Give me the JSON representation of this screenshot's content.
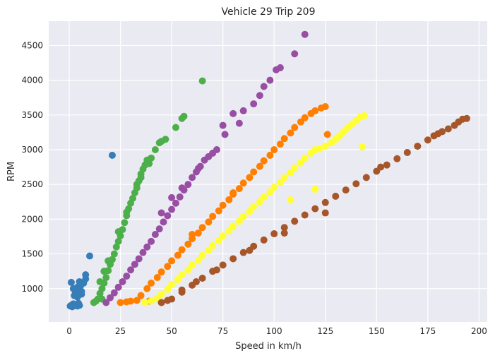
{
  "chart_data": {
    "type": "scatter",
    "title": "Vehicle 29 Trip 209",
    "xlabel": "Speed in km/h",
    "ylabel": "RPM",
    "xlim": [
      -10,
      204
    ],
    "ylim": [
      520,
      4850
    ],
    "xticks": [
      0,
      25,
      50,
      75,
      100,
      125,
      150,
      175,
      200
    ],
    "yticks": [
      1000,
      1500,
      2000,
      2500,
      3000,
      3500,
      4000,
      4500
    ],
    "grid": true,
    "legend": "none",
    "series": [
      {
        "color": "#377eb8",
        "points": [
          [
            0.5,
            750
          ],
          [
            1,
            760
          ],
          [
            1.5,
            740
          ],
          [
            2,
            780
          ],
          [
            2.5,
            770
          ],
          [
            3,
            760
          ],
          [
            4,
            750
          ],
          [
            4.5,
            790
          ],
          [
            5,
            760
          ],
          [
            1,
            1090
          ],
          [
            2,
            1000
          ],
          [
            3,
            960
          ],
          [
            4,
            1020
          ],
          [
            5,
            1100
          ],
          [
            5.5,
            1040
          ],
          [
            6,
            960
          ],
          [
            7,
            1080
          ],
          [
            8,
            1200
          ],
          [
            8,
            1140
          ],
          [
            2.5,
            900
          ],
          [
            4,
            880
          ],
          [
            6,
            920
          ],
          [
            10,
            1470
          ],
          [
            21,
            2920
          ]
        ]
      },
      {
        "color": "#4daf4a",
        "points": [
          [
            12,
            800
          ],
          [
            13,
            820
          ],
          [
            14,
            850
          ],
          [
            15,
            930
          ],
          [
            16,
            1000
          ],
          [
            17,
            1080
          ],
          [
            18,
            1160
          ],
          [
            19,
            1260
          ],
          [
            20,
            1350
          ],
          [
            21,
            1420
          ],
          [
            22,
            1500
          ],
          [
            23,
            1600
          ],
          [
            24,
            1680
          ],
          [
            25,
            1760
          ],
          [
            26,
            1850
          ],
          [
            27,
            1950
          ],
          [
            28,
            2050
          ],
          [
            29,
            2150
          ],
          [
            30,
            2230
          ],
          [
            31,
            2300
          ],
          [
            32,
            2380
          ],
          [
            33,
            2450
          ],
          [
            34,
            2550
          ],
          [
            35,
            2650
          ],
          [
            36,
            2720
          ],
          [
            37,
            2780
          ],
          [
            38,
            2850
          ],
          [
            39,
            2800
          ],
          [
            40,
            2880
          ],
          [
            42,
            3000
          ],
          [
            44,
            3100
          ],
          [
            45,
            3120
          ],
          [
            47,
            3150
          ],
          [
            52,
            3320
          ],
          [
            55,
            3450
          ],
          [
            56,
            3480
          ],
          [
            65,
            3990
          ],
          [
            15,
            1100
          ],
          [
            17,
            1250
          ],
          [
            19,
            1400
          ],
          [
            24,
            1820
          ],
          [
            28,
            2100
          ],
          [
            33,
            2500
          ],
          [
            35,
            2600
          ],
          [
            16,
            850
          ]
        ]
      },
      {
        "color": "#984ea3",
        "points": [
          [
            18,
            800
          ],
          [
            20,
            870
          ],
          [
            22,
            940
          ],
          [
            24,
            1020
          ],
          [
            26,
            1100
          ],
          [
            28,
            1180
          ],
          [
            30,
            1270
          ],
          [
            32,
            1350
          ],
          [
            34,
            1430
          ],
          [
            36,
            1520
          ],
          [
            38,
            1600
          ],
          [
            40,
            1680
          ],
          [
            42,
            1780
          ],
          [
            44,
            1860
          ],
          [
            46,
            1960
          ],
          [
            48,
            2050
          ],
          [
            50,
            2140
          ],
          [
            52,
            2230
          ],
          [
            54,
            2320
          ],
          [
            56,
            2420
          ],
          [
            58,
            2500
          ],
          [
            60,
            2600
          ],
          [
            62,
            2680
          ],
          [
            64,
            2760
          ],
          [
            66,
            2850
          ],
          [
            68,
            2900
          ],
          [
            70,
            2950
          ],
          [
            72,
            3000
          ],
          [
            75,
            3350
          ],
          [
            76,
            3220
          ],
          [
            80,
            3520
          ],
          [
            83,
            3380
          ],
          [
            85,
            3560
          ],
          [
            90,
            3660
          ],
          [
            93,
            3780
          ],
          [
            95,
            3910
          ],
          [
            98,
            4000
          ],
          [
            101,
            4150
          ],
          [
            103,
            4180
          ],
          [
            110,
            4380
          ],
          [
            115,
            4660
          ],
          [
            45,
            2090
          ],
          [
            50,
            2310
          ],
          [
            55,
            2450
          ],
          [
            63,
            2730
          ]
        ]
      },
      {
        "color": "#ff7f00",
        "points": [
          [
            25,
            800
          ],
          [
            28,
            810
          ],
          [
            30,
            820
          ],
          [
            33,
            830
          ],
          [
            35,
            900
          ],
          [
            38,
            1000
          ],
          [
            40,
            1080
          ],
          [
            43,
            1160
          ],
          [
            45,
            1240
          ],
          [
            48,
            1320
          ],
          [
            50,
            1400
          ],
          [
            53,
            1480
          ],
          [
            55,
            1560
          ],
          [
            58,
            1640
          ],
          [
            60,
            1720
          ],
          [
            63,
            1800
          ],
          [
            65,
            1880
          ],
          [
            68,
            1960
          ],
          [
            70,
            2040
          ],
          [
            73,
            2120
          ],
          [
            75,
            2200
          ],
          [
            78,
            2280
          ],
          [
            80,
            2360
          ],
          [
            83,
            2440
          ],
          [
            85,
            2520
          ],
          [
            88,
            2600
          ],
          [
            90,
            2680
          ],
          [
            93,
            2760
          ],
          [
            95,
            2840
          ],
          [
            98,
            2920
          ],
          [
            100,
            3000
          ],
          [
            103,
            3080
          ],
          [
            105,
            3160
          ],
          [
            108,
            3240
          ],
          [
            110,
            3320
          ],
          [
            113,
            3400
          ],
          [
            115,
            3460
          ],
          [
            118,
            3520
          ],
          [
            120,
            3560
          ],
          [
            123,
            3600
          ],
          [
            125,
            3620
          ],
          [
            126,
            3220
          ],
          [
            39,
            820
          ],
          [
            45,
            800
          ],
          [
            60,
            1780
          ],
          [
            80,
            2380
          ]
        ]
      },
      {
        "color": "#ffff33",
        "points": [
          [
            37,
            800
          ],
          [
            40,
            820
          ],
          [
            43,
            860
          ],
          [
            45,
            920
          ],
          [
            48,
            990
          ],
          [
            50,
            1060
          ],
          [
            53,
            1130
          ],
          [
            55,
            1200
          ],
          [
            58,
            1270
          ],
          [
            60,
            1340
          ],
          [
            63,
            1410
          ],
          [
            65,
            1480
          ],
          [
            68,
            1550
          ],
          [
            70,
            1620
          ],
          [
            73,
            1690
          ],
          [
            75,
            1760
          ],
          [
            78,
            1830
          ],
          [
            80,
            1900
          ],
          [
            83,
            1970
          ],
          [
            85,
            2040
          ],
          [
            88,
            2110
          ],
          [
            90,
            2180
          ],
          [
            93,
            2250
          ],
          [
            95,
            2320
          ],
          [
            98,
            2390
          ],
          [
            100,
            2460
          ],
          [
            103,
            2530
          ],
          [
            105,
            2600
          ],
          [
            108,
            2670
          ],
          [
            110,
            2740
          ],
          [
            113,
            2810
          ],
          [
            115,
            2880
          ],
          [
            118,
            2950
          ],
          [
            120,
            3000
          ],
          [
            122,
            3010
          ],
          [
            125,
            3050
          ],
          [
            128,
            3100
          ],
          [
            130,
            3150
          ],
          [
            132,
            3200
          ],
          [
            134,
            3260
          ],
          [
            136,
            3320
          ],
          [
            138,
            3370
          ],
          [
            140,
            3420
          ],
          [
            142,
            3470
          ],
          [
            144,
            3490
          ],
          [
            143,
            3040
          ],
          [
            108,
            2280
          ],
          [
            120,
            2430
          ]
        ]
      },
      {
        "color": "#a65628",
        "points": [
          [
            45,
            800
          ],
          [
            48,
            830
          ],
          [
            50,
            850
          ],
          [
            55,
            950
          ],
          [
            60,
            1050
          ],
          [
            65,
            1150
          ],
          [
            70,
            1250
          ],
          [
            75,
            1340
          ],
          [
            80,
            1430
          ],
          [
            85,
            1520
          ],
          [
            90,
            1610
          ],
          [
            95,
            1700
          ],
          [
            100,
            1790
          ],
          [
            105,
            1880
          ],
          [
            110,
            1970
          ],
          [
            115,
            2060
          ],
          [
            120,
            2150
          ],
          [
            125,
            2240
          ],
          [
            130,
            2330
          ],
          [
            135,
            2420
          ],
          [
            140,
            2510
          ],
          [
            145,
            2600
          ],
          [
            150,
            2690
          ],
          [
            155,
            2780
          ],
          [
            160,
            2870
          ],
          [
            165,
            2960
          ],
          [
            170,
            3050
          ],
          [
            175,
            3140
          ],
          [
            178,
            3200
          ],
          [
            180,
            3230
          ],
          [
            182,
            3260
          ],
          [
            185,
            3300
          ],
          [
            188,
            3350
          ],
          [
            190,
            3400
          ],
          [
            192,
            3440
          ],
          [
            194,
            3450
          ],
          [
            55,
            980
          ],
          [
            62,
            1100
          ],
          [
            72,
            1270
          ],
          [
            88,
            1550
          ],
          [
            105,
            1800
          ],
          [
            125,
            2090
          ],
          [
            152,
            2750
          ]
        ]
      }
    ]
  }
}
